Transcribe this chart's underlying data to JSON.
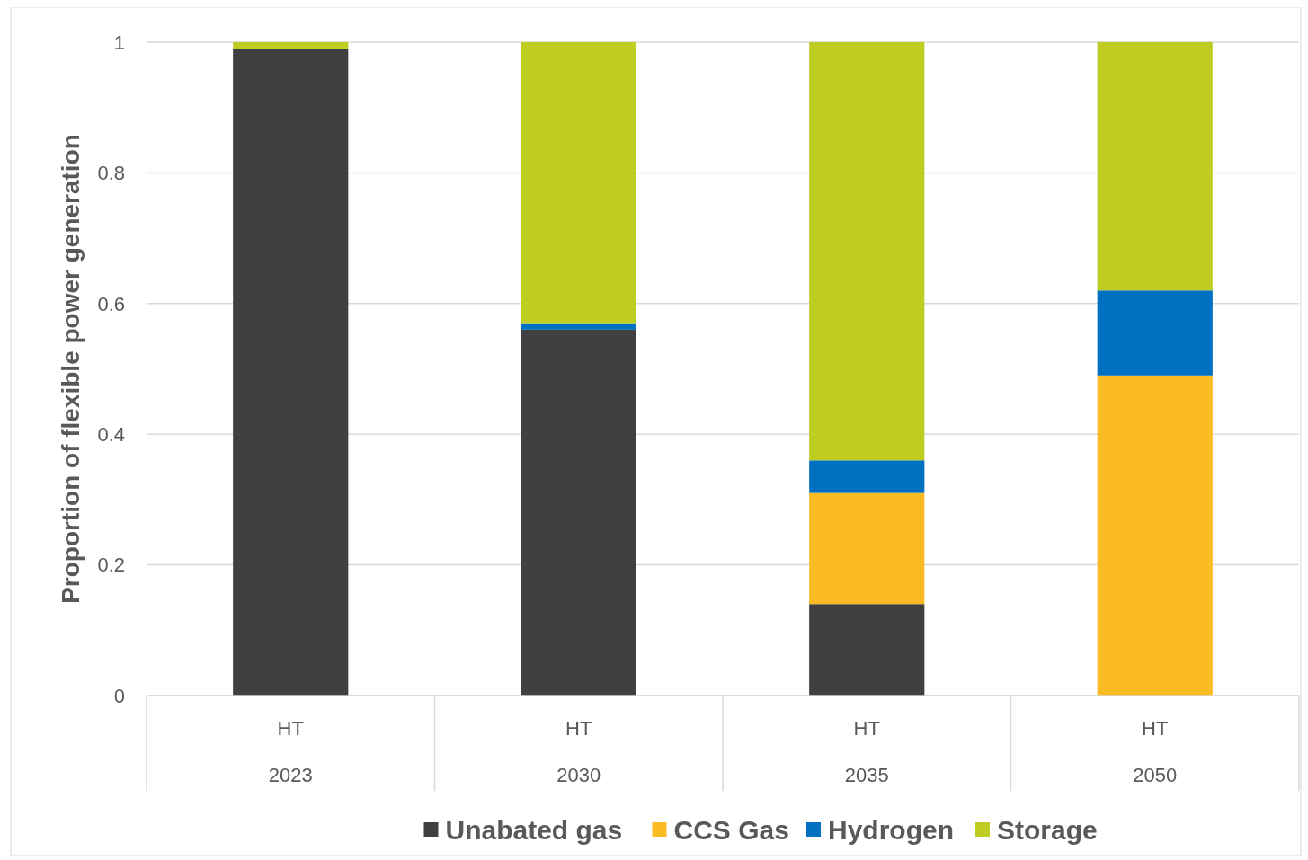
{
  "chart_data": {
    "type": "bar",
    "stacked": true,
    "ylabel": "Proportion of flexible power generation",
    "categories": [
      "HT\n2023",
      "HT\n2030",
      "HT\n2035",
      "HT\n2050"
    ],
    "series": [
      {
        "name": "Unabated gas",
        "color": "#404040",
        "values": [
          0.99,
          0.56,
          0.14,
          0
        ]
      },
      {
        "name": "CCS Gas",
        "color": "#fbbc23",
        "values": [
          0,
          0,
          0.17,
          0.49
        ]
      },
      {
        "name": "Hydrogen",
        "color": "#0070c0",
        "values": [
          0,
          0.01,
          0.05,
          0.13
        ]
      },
      {
        "name": "Storage",
        "color": "#bfcd22",
        "values": [
          0.01,
          0.43,
          0.64,
          0.38
        ]
      }
    ],
    "ylim": [
      0,
      1
    ],
    "yticks": [
      0,
      0.2,
      0.4,
      0.6,
      0.8,
      1
    ],
    "grid": "y",
    "legend": "bottom"
  }
}
